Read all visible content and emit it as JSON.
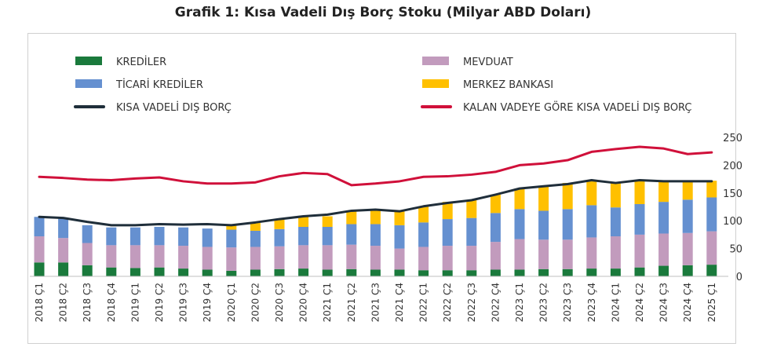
{
  "chart_data": {
    "type": "bar",
    "title": "Grafik 1: Kısa Vadeli Dış Borç Stoku (Milyar ABD Doları)",
    "stacked": true,
    "ylim": [
      0,
      250
    ],
    "yticks": [
      0,
      50,
      100,
      150,
      200,
      250
    ],
    "grid": false,
    "legend_position": "top",
    "categories": [
      "2018 Ç1",
      "2018 Ç2",
      "2018 Ç3",
      "2018 Ç4",
      "2019 Ç1",
      "2019 Ç2",
      "2019 Ç3",
      "2019 Ç4",
      "2020 Ç1",
      "2020 Ç2",
      "2020 Ç3",
      "2020 Ç4",
      "2021 Ç1",
      "2021 Ç2",
      "2021 Ç3",
      "2021 Ç4",
      "2022 Ç1",
      "2022 Ç2",
      "2022 Ç3",
      "2022 Ç4",
      "2023 Ç1",
      "2023 Ç2",
      "2023 Ç3",
      "2023 Ç4",
      "2024 Ç1",
      "2024 Ç2",
      "2024 Ç3",
      "2024 Ç4",
      "2025 Ç1"
    ],
    "bar_series": [
      {
        "name": "KREDİLER",
        "color": "#1a7a3c",
        "values": [
          25,
          25,
          20,
          16,
          15,
          16,
          14,
          12,
          10,
          12,
          13,
          14,
          12,
          13,
          12,
          12,
          11,
          11,
          11,
          12,
          12,
          13,
          13,
          14,
          14,
          16,
          19,
          20,
          21
        ]
      },
      {
        "name": "MEVDUAT",
        "color": "#c29bbd",
        "values": [
          47,
          44,
          40,
          40,
          41,
          40,
          41,
          41,
          42,
          41,
          41,
          42,
          44,
          44,
          43,
          38,
          42,
          44,
          44,
          50,
          55,
          53,
          53,
          56,
          58,
          59,
          58,
          58,
          60
        ]
      },
      {
        "name": "TİCARİ KREDİLER",
        "color": "#6590d0",
        "values": [
          35,
          36,
          32,
          32,
          32,
          33,
          33,
          33,
          32,
          29,
          31,
          33,
          33,
          37,
          39,
          42,
          44,
          48,
          50,
          52,
          54,
          52,
          55,
          58,
          52,
          55,
          57,
          60,
          61
        ]
      },
      {
        "name": "MERKEZ BANKASI",
        "color": "#ffc000",
        "values": [
          0,
          0,
          0,
          0,
          0,
          0,
          0,
          0,
          8,
          14,
          17,
          18,
          19,
          23,
          25,
          25,
          29,
          31,
          32,
          33,
          37,
          45,
          47,
          45,
          44,
          42,
          38,
          34,
          30
        ]
      }
    ],
    "line_series": [
      {
        "name": "KISA VADELİ DIŞ BORÇ",
        "color": "#1f2e3a",
        "values": [
          107,
          105,
          98,
          92,
          92,
          94,
          93,
          94,
          92,
          97,
          103,
          108,
          111,
          118,
          120,
          117,
          126,
          132,
          137,
          147,
          158,
          162,
          166,
          173,
          168,
          173,
          171,
          171,
          171
        ]
      },
      {
        "name": "KALAN VADEYE GÖRE KISA VADELİ DIŞ BORÇ",
        "color": "#d0103a",
        "values": [
          179,
          177,
          174,
          173,
          176,
          178,
          171,
          167,
          167,
          169,
          180,
          186,
          184,
          164,
          167,
          171,
          179,
          180,
          183,
          188,
          200,
          203,
          209,
          224,
          229,
          233,
          230,
          220,
          223
        ]
      }
    ],
    "legend": [
      {
        "label": "KREDİLER",
        "kind": "box",
        "color": "#1a7a3c"
      },
      {
        "label": "MEVDUAT",
        "kind": "box",
        "color": "#c29bbd"
      },
      {
        "label": "TİCARİ KREDİLER",
        "kind": "box",
        "color": "#6590d0"
      },
      {
        "label": "MERKEZ BANKASI",
        "kind": "box",
        "color": "#ffc000"
      },
      {
        "label": "KISA VADELİ DIŞ BORÇ",
        "kind": "line",
        "color": "#1f2e3a"
      },
      {
        "label": "KALAN VADEYE GÖRE KISA VADELİ DIŞ BORÇ",
        "kind": "line",
        "color": "#d0103a"
      }
    ]
  }
}
